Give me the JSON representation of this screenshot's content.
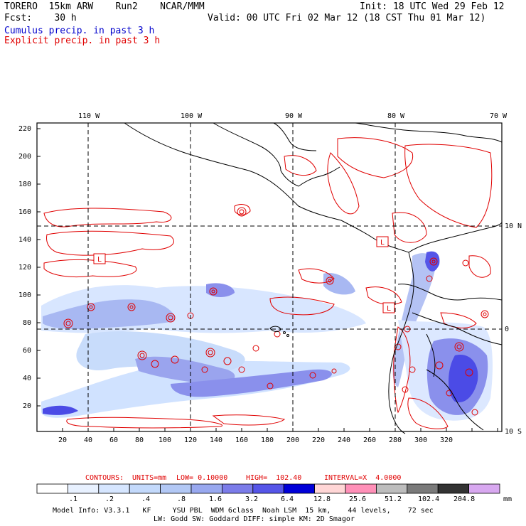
{
  "header": {
    "left_line1": "TORERO  15km ARW    Run2    NCAR/MMM",
    "left_line2": "Fcst:    30 h",
    "right_line1": "Init: 18 UTC Wed 29 Feb 12",
    "right_line2": "Valid: 00 UTC Fri 02 Mar 12 (18 CST Thu 01 Mar 12)",
    "legend_cumulus": "Cumulus precip. in past 3 h",
    "legend_explicit": "Explicit precip. in past 3 h"
  },
  "colors": {
    "cumulus": "#0000cc",
    "explicit": "#e00000",
    "contour_red": "#e00000",
    "land_line": "#000000"
  },
  "map": {
    "lon_labels": [
      "110 W",
      "100 W",
      "90 W",
      "80 W",
      "70 W"
    ],
    "lat_labels": [
      "10 N",
      "0",
      "10 S"
    ],
    "grid_x_labels": [
      "20",
      "40",
      "60",
      "80",
      "100",
      "120",
      "140",
      "160",
      "180",
      "200",
      "220",
      "240",
      "260",
      "280",
      "300",
      "320"
    ],
    "grid_y_labels": [
      "220",
      "200",
      "180",
      "160",
      "140",
      "120",
      "100",
      "80",
      "60",
      "40",
      "20"
    ],
    "low_markers": [
      "L",
      "L",
      "L"
    ]
  },
  "contour_info": {
    "text_contours": "CONTOURS:",
    "text_units": "UNITS=mm",
    "text_low": "LOW= 0.10000",
    "text_high": "HIGH=  102.40",
    "text_interval": "INTERVAL=X  4.0000"
  },
  "colorbar": {
    "labels": [
      ".1",
      ".2",
      ".4",
      ".8",
      "1.6",
      "3.2",
      "6.4",
      "12.8",
      "25.6",
      "51.2",
      "102.4",
      "204.8"
    ],
    "unit": "mm",
    "colors": [
      "#ffffff",
      "#e8f1ff",
      "#d6e6ff",
      "#c3d9fb",
      "#b2c8f5",
      "#98a8ef",
      "#7b7ce9",
      "#5555e8",
      "#0000d8",
      "#ffd6d6",
      "#ff90b8",
      "#bdbdbd",
      "#7a7a7a",
      "#333333",
      "#d8a8f0"
    ]
  },
  "footer": {
    "line1": "Model Info: V3.3.1   KF     YSU PBL  WDM 6class  Noah LSM  15 km,    44 levels,    72 sec",
    "line2": "LW: Godd SW: Goddard DIFF: simple KM: 2D Smagor"
  }
}
